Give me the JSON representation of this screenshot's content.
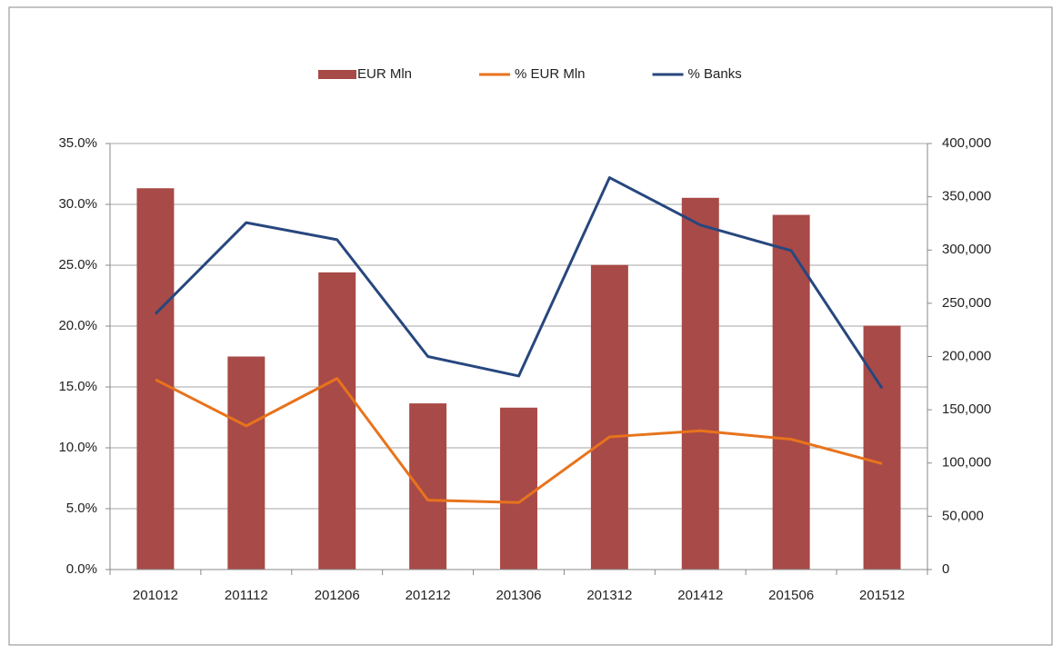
{
  "chart_data": {
    "type": "combo",
    "categories": [
      "201012",
      "201112",
      "201206",
      "201212",
      "201306",
      "201312",
      "201412",
      "201506",
      "201512"
    ],
    "series": [
      {
        "name": "EUR Mln",
        "type": "bar",
        "axis": "y2",
        "color": "#a84a47",
        "values": [
          358000,
          200000,
          279000,
          156000,
          152000,
          286000,
          349000,
          333000,
          229000
        ]
      },
      {
        "name": "% EUR Mln",
        "type": "line",
        "axis": "y",
        "color": "#e8731c",
        "values": [
          15.6,
          11.8,
          15.7,
          5.7,
          5.5,
          10.9,
          11.4,
          10.7,
          8.7
        ]
      },
      {
        "name": "% Banks",
        "type": "line",
        "axis": "y",
        "color": "#27477e",
        "values": [
          21.0,
          28.5,
          27.1,
          17.5,
          15.9,
          32.2,
          28.3,
          26.2,
          14.9
        ]
      }
    ],
    "ylim": [
      0,
      35
    ],
    "yticks": [
      {
        "value": 0,
        "label": "0.0%"
      },
      {
        "value": 5,
        "label": "5.0%"
      },
      {
        "value": 10,
        "label": "10.0%"
      },
      {
        "value": 15,
        "label": "15.0%"
      },
      {
        "value": 20,
        "label": "20.0%"
      },
      {
        "value": 25,
        "label": "25.0%"
      },
      {
        "value": 30,
        "label": "30.0%"
      },
      {
        "value": 35,
        "label": "35.0%"
      }
    ],
    "y2lim": [
      0,
      400000
    ],
    "y2ticks": [
      0,
      {
        "value": 50000,
        "label": "50,000"
      },
      {
        "value": 100000,
        "label": "100,000"
      },
      {
        "value": 150000,
        "label": "150,000"
      },
      {
        "value": 200000,
        "label": "200,000"
      },
      {
        "value": 250000,
        "label": "250,000"
      },
      {
        "value": 300000,
        "label": "300,000"
      },
      {
        "value": 350000,
        "label": "350,000"
      },
      {
        "value": 400000,
        "label": "400,000"
      }
    ],
    "grid": true,
    "legend": "top"
  }
}
